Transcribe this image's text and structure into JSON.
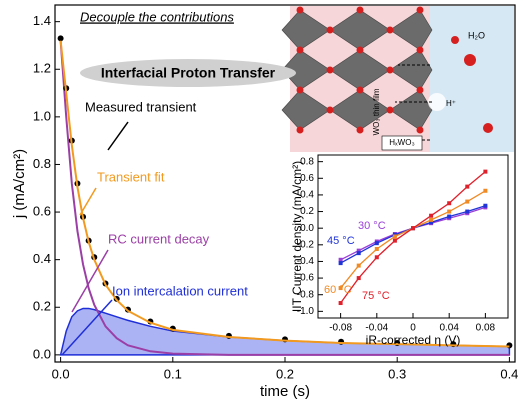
{
  "chart_data": [
    {
      "type": "line",
      "title": "Decouple the contributions",
      "subtitle": "Interfacial Proton Transfer",
      "x_label": "time (s)",
      "y_label": "j (mA/cm²)",
      "xlim": [
        -0.005,
        0.405
      ],
      "ylim": [
        -0.03,
        1.47
      ],
      "xticks": [
        {
          "value": 0,
          "label": "0.0"
        },
        0.1,
        0.2,
        0.3,
        0.4
      ],
      "yticks": [
        {
          "value": 0,
          "label": "0.0"
        },
        0.2,
        0.4,
        0.6,
        0.8,
        {
          "value": 1,
          "label": "1.0"
        },
        1.2,
        1.4
      ],
      "x": [
        0,
        0.005,
        0.01,
        0.015,
        0.02,
        0.025,
        0.03,
        0.04,
        0.05,
        0.06,
        0.08,
        0.1,
        0.15,
        0.2,
        0.25,
        0.3,
        0.35,
        0.4
      ],
      "series": [
        {
          "name": "Ion intercalation current",
          "color": "#1f2fd8",
          "mode": "area",
          "values": [
            0,
            0.1,
            0.16,
            0.185,
            0.195,
            0.195,
            0.19,
            0.175,
            0.16,
            0.145,
            0.12,
            0.1,
            0.075,
            0.06,
            0.05,
            0.045,
            0.04,
            0.035
          ]
        },
        {
          "name": "RC current decay",
          "color": "#9b3fa6",
          "mode": "line",
          "values": [
            1.32,
            1.0,
            0.72,
            0.52,
            0.38,
            0.28,
            0.21,
            0.12,
            0.07,
            0.04,
            0.015,
            0.005,
            0,
            0,
            0,
            0,
            0,
            0
          ]
        },
        {
          "name": "Measured transient",
          "color": "#000000",
          "mode": "markers",
          "values": [
            1.33,
            1.12,
            0.9,
            0.72,
            0.58,
            0.48,
            0.41,
            0.3,
            0.235,
            0.19,
            0.14,
            0.11,
            0.08,
            0.065,
            0.055,
            0.05,
            0.045,
            0.04
          ]
        },
        {
          "name": "Transient fit",
          "color": "#f29a1f",
          "mode": "line",
          "values": [
            1.32,
            1.1,
            0.88,
            0.705,
            0.575,
            0.475,
            0.4,
            0.295,
            0.23,
            0.185,
            0.135,
            0.105,
            0.075,
            0.06,
            0.05,
            0.045,
            0.04,
            0.035
          ]
        }
      ]
    },
    {
      "type": "scatter",
      "x_label": "iR-corrected η (V)",
      "y_label": "IIT Current density (mA/cm²)",
      "xlim": [
        -0.105,
        0.105
      ],
      "ylim": [
        -1.08,
        0.88
      ],
      "xticks": [
        -0.08,
        -0.04,
        0,
        0.04,
        0.08
      ],
      "yticks": [
        {
          "value": -1,
          "label": "-1.0"
        },
        -0.8,
        -0.6,
        -0.4,
        -0.2,
        {
          "value": 0,
          "label": "0.0"
        },
        0.2,
        0.4,
        0.6,
        0.8
      ],
      "x": [
        -0.08,
        -0.06,
        -0.04,
        -0.02,
        0,
        0.02,
        0.04,
        0.06,
        0.08
      ],
      "series": [
        {
          "name": "30 °C",
          "color": "#9a3fd8",
          "values": [
            -0.38,
            -0.27,
            -0.16,
            -0.07,
            0,
            0.06,
            0.12,
            0.18,
            0.25
          ]
        },
        {
          "name": "45 °C",
          "color": "#2034d8",
          "values": [
            -0.42,
            -0.3,
            -0.18,
            -0.08,
            0,
            0.07,
            0.14,
            0.2,
            0.27
          ]
        },
        {
          "name": "60 °C",
          "color": "#f08a24",
          "values": [
            -0.72,
            -0.45,
            -0.25,
            -0.1,
            0,
            0.1,
            0.2,
            0.32,
            0.45
          ]
        },
        {
          "name": "75 °C",
          "color": "#e0202a",
          "values": [
            -0.9,
            -0.6,
            -0.35,
            -0.15,
            0,
            0.15,
            0.3,
            0.5,
            0.68
          ]
        }
      ]
    }
  ],
  "illustration": {
    "water": "H₂O",
    "proton": "H⁺",
    "film": "WO₃ thin film",
    "bronze": "HₓWO₃"
  }
}
